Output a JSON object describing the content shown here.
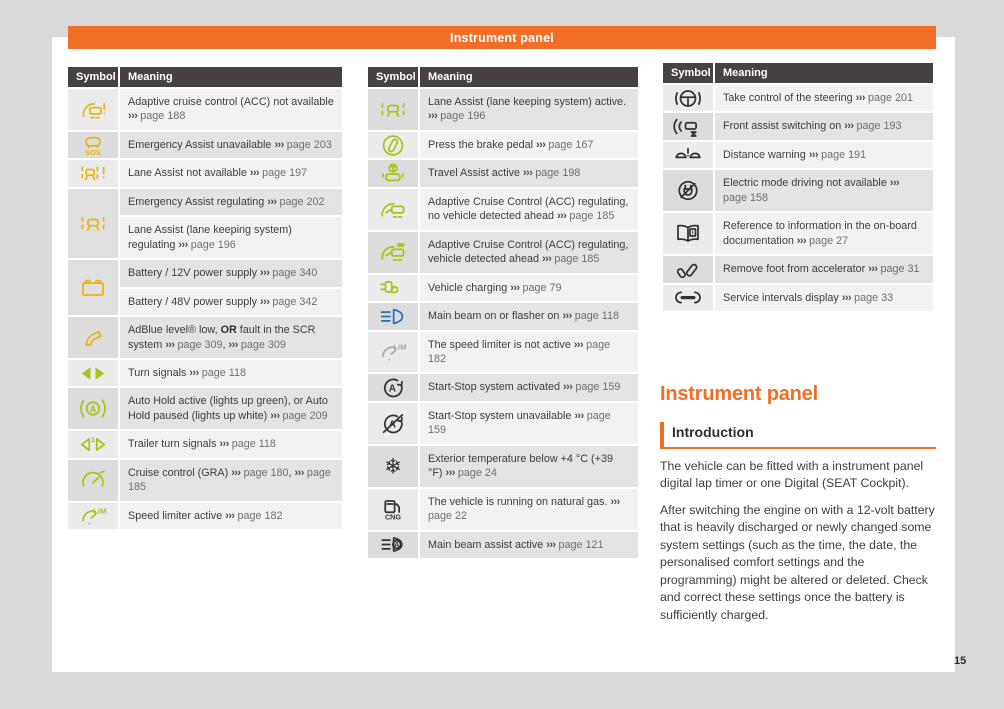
{
  "header": {
    "title": "Instrument panel"
  },
  "page": {
    "number": "15"
  },
  "colors": {
    "accent_orange": "#f06e25",
    "table_header_bg": "#474241",
    "warn_yellow": "#e7b512",
    "status_green": "#a4c617",
    "beam_blue": "#2573b8",
    "icon_black": "#333333",
    "icon_gray": "#a9a9a9",
    "canvas_gray": "#d9d9d9"
  },
  "table_headers": {
    "symbol": "Symbol",
    "meaning": "Meaning"
  },
  "columns": [
    {
      "start_shade": "light",
      "groups": [
        {
          "icon": "acc-warning",
          "color": "yellow",
          "meanings": [
            "Adaptive cruise control (ACC) not available ››› page 188"
          ]
        },
        {
          "icon": "emergency-assist-sos",
          "color": "yellow",
          "meanings": [
            "Emergency Assist unavailable ››› page 203"
          ]
        },
        {
          "icon": "lane-assist-warning",
          "color": "yellow",
          "meanings": [
            "Lane Assist not available ››› page 197"
          ]
        },
        {
          "icon": "lane-assist-car",
          "color": "yellow",
          "meanings": [
            "Emergency Assist regulating ››› page 202",
            "Lane Assist (lane keeping system) regulating ››› page 196"
          ]
        },
        {
          "icon": "battery",
          "color": "yellow",
          "meanings": [
            "Battery / 12V power supply ››› page 340",
            "Battery / 48V power supply ››› page 342"
          ]
        },
        {
          "icon": "adblue-nozzle",
          "color": "yellow",
          "meanings": [
            "AdBlue level® low, **OR** fault in the SCR system ››› page 309, ››› page 309"
          ]
        },
        {
          "icon": "turn-signals",
          "color": "green",
          "meanings": [
            "Turn signals ››› page 118"
          ]
        },
        {
          "icon": "auto-hold",
          "color": "green",
          "meanings": [
            "Auto Hold active (lights up green), or Auto Hold paused (lights up white) ››› page 209"
          ]
        },
        {
          "icon": "trailer-turn-signals",
          "color": "green",
          "meanings": [
            "Trailer turn signals ››› page 118"
          ]
        },
        {
          "icon": "cruise-control",
          "color": "green",
          "meanings": [
            "Cruise control (GRA) ››› page 180, ››› page 185"
          ]
        },
        {
          "icon": "speed-limiter",
          "color": "green",
          "meanings": [
            "Speed limiter active ››› page 182"
          ]
        }
      ]
    },
    {
      "start_shade": "gray",
      "groups": [
        {
          "icon": "lane-assist-active",
          "color": "green",
          "meanings": [
            "Lane Assist (lane keeping system) active. ››› page 196"
          ]
        },
        {
          "icon": "brake-pedal",
          "color": "green",
          "meanings": [
            "Press the brake pedal ››› page 167"
          ]
        },
        {
          "icon": "travel-assist",
          "color": "green",
          "meanings": [
            "Travel Assist active ››› page 198"
          ]
        },
        {
          "icon": "acc-regulating",
          "color": "green",
          "meanings": [
            "Adaptive Cruise Control (ACC) regulating, no vehicle detected ahead ››› page 185"
          ]
        },
        {
          "icon": "acc-regulating-vehicle",
          "color": "green",
          "meanings": [
            "Adaptive Cruise Control (ACC) regulating, vehicle detected ahead ››› page 185"
          ]
        },
        {
          "icon": "vehicle-charging",
          "color": "green",
          "meanings": [
            "Vehicle charging ››› page 79"
          ]
        },
        {
          "icon": "main-beam",
          "color": "blue",
          "meanings": [
            "Main beam on or flasher on ››› page 118"
          ]
        },
        {
          "icon": "speed-limiter-inactive",
          "color": "gray",
          "meanings": [
            "The speed limiter is not active ››› page 182"
          ]
        },
        {
          "icon": "start-stop",
          "color": "black",
          "meanings": [
            "Start-Stop system activated ››› page 159"
          ]
        },
        {
          "icon": "start-stop-unavailable",
          "color": "black",
          "meanings": [
            "Start-Stop system unavailable ››› page 159"
          ]
        },
        {
          "icon": "snowflake",
          "color": "black",
          "meanings": [
            "Exterior temperature below +4 °C (+39 °F) ››› page 24"
          ]
        },
        {
          "icon": "cng-pump",
          "color": "black",
          "meanings": [
            "The vehicle is running on natural gas. ››› page 22"
          ]
        },
        {
          "icon": "main-beam-assist",
          "color": "black",
          "meanings": [
            "Main beam assist active ››› page 121"
          ]
        }
      ]
    },
    {
      "start_shade": "light",
      "groups": [
        {
          "icon": "steering-wheel-hands",
          "color": "black",
          "meanings": [
            "Take control of the steering ››› page 201"
          ]
        },
        {
          "icon": "front-assist",
          "color": "black",
          "meanings": [
            "Front assist switching on ››› page 193"
          ]
        },
        {
          "icon": "distance-warning",
          "color": "black",
          "meanings": [
            "Distance warning ››› page 191"
          ]
        },
        {
          "icon": "electric-mode-unavailable",
          "color": "black",
          "meanings": [
            "Electric mode driving not available ››› page 158"
          ]
        },
        {
          "icon": "onboard-documentation",
          "color": "black",
          "meanings": [
            "Reference to information in the on-board documentation ››› page 27"
          ]
        },
        {
          "icon": "remove-foot-accelerator",
          "color": "black",
          "meanings": [
            "Remove foot from accelerator ››› page 31"
          ]
        },
        {
          "icon": "service-intervals",
          "color": "black",
          "meanings": [
            "Service intervals display ››› page 33"
          ]
        }
      ]
    }
  ],
  "article": {
    "title": "Instrument panel",
    "section": "Introduction",
    "paragraphs": [
      "The vehicle can be fitted with a instrument panel digital lap timer or one Digital (SEAT Cockpit).",
      "After switching the engine on with a 12-volt battery that is heavily discharged or newly changed some system settings (such as the time, the date, the personalised comfort settings and the programming) might be altered or deleted. Check and correct these settings once the battery is sufficiently charged."
    ]
  }
}
